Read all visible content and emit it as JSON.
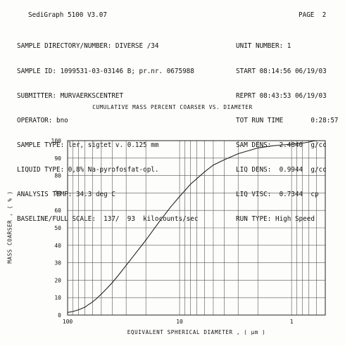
{
  "header": {
    "app_title": "SediGraph 5100 V3.07",
    "page_label": "PAGE",
    "page_number": "2"
  },
  "info_left": [
    "SAMPLE DIRECTORY/NUMBER: DIVERSE /34",
    "SAMPLE ID: 1099531-03-03146 B; pr.nr. 0675988",
    "SUBMITTER: MURVAERKSCENTRET",
    "OPERATOR: bno",
    "SAMPLE TYPE: ler, sigtet v. 0.125 mm",
    "LIQUID TYPE: 0,8% Na-pyrofosfat-opl.",
    "ANALYSIS TEMP: 34.3 deg C",
    "BASELINE/FULL SCALE:  137/  93  kilocounts/sec"
  ],
  "info_right": [
    "UNIT NUMBER: 1",
    "START 08:14:56 06/19/03",
    "REPRT 08:43:53 06/19/03",
    "TOT RUN TIME       0:28:57",
    "SAM DENS:  2.4840  g/cc",
    "LIQ DENS:  0.9944  g/cc",
    "LIQ VISC:  0.7344  cp",
    "RUN TYPE: High Speed"
  ],
  "chart_data": {
    "type": "line",
    "title": "CUMULATIVE MASS PERCENT COARSER VS. DIAMETER",
    "xlabel": "EQUIVALENT SPHERICAL DIAMETER , ( μm )",
    "ylabel": "MASS COARSER , ( % )",
    "x_scale": "log",
    "x_reversed": true,
    "xlim": [
      100,
      0.5
    ],
    "ylim": [
      0,
      100
    ],
    "x_ticks": [
      "100",
      "10",
      "1"
    ],
    "y_ticks": [
      "0",
      "10",
      "20",
      "30",
      "40",
      "50",
      "60",
      "70",
      "80",
      "90",
      "100"
    ],
    "grid": true,
    "line_color": "#222222",
    "series": [
      {
        "x": [
          100,
          90,
          80,
          70,
          65,
          60,
          55,
          50,
          45,
          40,
          35,
          30,
          25,
          20,
          15,
          12,
          10,
          8,
          6,
          5,
          4,
          3,
          2.5,
          2,
          1.5,
          1.2,
          1,
          0.8,
          0.7,
          0.65,
          0.6
        ],
        "y": [
          1.5,
          2,
          3,
          4.5,
          6,
          7.5,
          9.5,
          12,
          15,
          18.5,
          23,
          28.5,
          35,
          43,
          54,
          62,
          68,
          75,
          82,
          86,
          89,
          92.5,
          94,
          95.8,
          97,
          97.6,
          98,
          98.6,
          99.2,
          99.7,
          100
        ]
      }
    ]
  }
}
